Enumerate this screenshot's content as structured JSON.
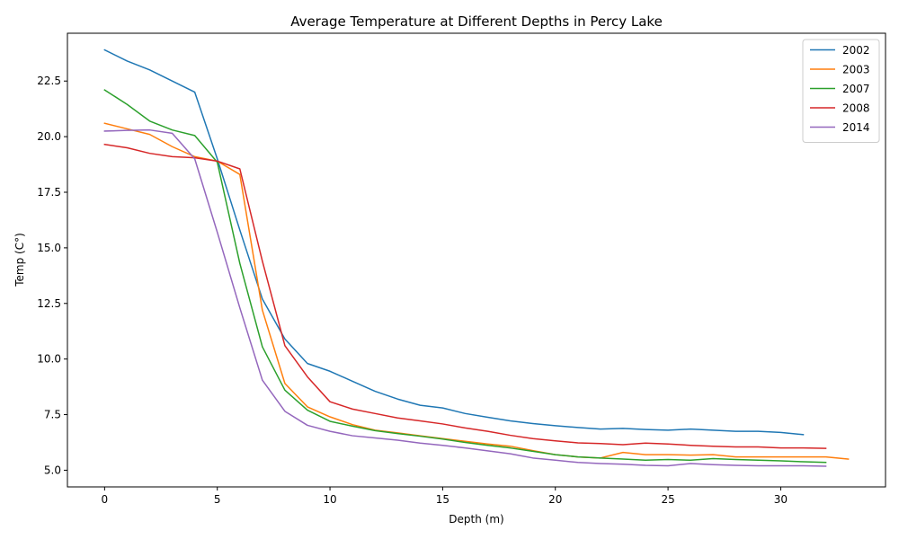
{
  "chart_data": {
    "type": "line",
    "title": "Average Temperature at Different Depths in Percy Lake",
    "xlabel": "Depth (m)",
    "ylabel": "Temp (C°)",
    "xlim": [
      -1.65,
      34.65
    ],
    "ylim": [
      4.25,
      24.65
    ],
    "xticks": [
      0,
      5,
      10,
      15,
      20,
      25,
      30
    ],
    "xtick_labels": [
      "0",
      "5",
      "10",
      "15",
      "20",
      "25",
      "30"
    ],
    "yticks": [
      5.0,
      7.5,
      10.0,
      12.5,
      15.0,
      17.5,
      20.0,
      22.5
    ],
    "ytick_labels": [
      "5.0",
      "7.5",
      "10.0",
      "12.5",
      "15.0",
      "17.5",
      "20.0",
      "22.5"
    ],
    "grid": false,
    "legend_position": "top-right",
    "series": [
      {
        "name": "2002",
        "color": "#1f77b4",
        "x": [
          0,
          1,
          2,
          3,
          4,
          5,
          6,
          7,
          8,
          9,
          10,
          11,
          12,
          13,
          14,
          15,
          16,
          17,
          18,
          19,
          20,
          21,
          22,
          23,
          24,
          25,
          26,
          27,
          28,
          29,
          30,
          31
        ],
        "y": [
          23.9,
          23.4,
          23.0,
          22.5,
          22.0,
          19.0,
          15.8,
          12.7,
          10.9,
          9.8,
          9.45,
          9.0,
          8.55,
          8.2,
          7.92,
          7.8,
          7.55,
          7.38,
          7.22,
          7.1,
          7.0,
          6.92,
          6.85,
          6.88,
          6.83,
          6.8,
          6.85,
          6.8,
          6.75,
          6.75,
          6.7,
          6.6
        ]
      },
      {
        "name": "2003",
        "color": "#ff7f0e",
        "x": [
          0,
          1,
          2,
          3,
          4,
          5,
          6,
          7,
          8,
          9,
          10,
          11,
          12,
          13,
          14,
          15,
          16,
          17,
          18,
          19,
          20,
          21,
          22,
          23,
          24,
          25,
          26,
          27,
          28,
          29,
          30,
          31,
          32,
          33
        ],
        "y": [
          20.6,
          20.35,
          20.1,
          19.55,
          19.1,
          18.9,
          18.3,
          12.2,
          8.9,
          7.85,
          7.4,
          7.05,
          6.8,
          6.68,
          6.55,
          6.42,
          6.3,
          6.18,
          6.08,
          5.88,
          5.7,
          5.6,
          5.55,
          5.8,
          5.7,
          5.7,
          5.68,
          5.7,
          5.6,
          5.6,
          5.6,
          5.6,
          5.6,
          5.5
        ]
      },
      {
        "name": "2007",
        "color": "#2ca02c",
        "x": [
          0,
          1,
          2,
          3,
          4,
          5,
          6,
          7,
          8,
          9,
          10,
          11,
          12,
          13,
          14,
          15,
          16,
          17,
          18,
          19,
          20,
          21,
          22,
          23,
          24,
          25,
          26,
          27,
          28,
          29,
          30,
          31,
          32
        ],
        "y": [
          22.1,
          21.45,
          20.7,
          20.3,
          20.05,
          18.85,
          14.3,
          10.55,
          8.6,
          7.7,
          7.2,
          6.98,
          6.78,
          6.65,
          6.53,
          6.4,
          6.25,
          6.12,
          6.0,
          5.85,
          5.7,
          5.6,
          5.55,
          5.5,
          5.45,
          5.48,
          5.45,
          5.52,
          5.48,
          5.45,
          5.42,
          5.38,
          5.35
        ]
      },
      {
        "name": "2008",
        "color": "#d62728",
        "x": [
          0,
          1,
          2,
          3,
          4,
          5,
          6,
          7,
          8,
          9,
          10,
          11,
          12,
          13,
          14,
          15,
          16,
          17,
          18,
          19,
          20,
          21,
          22,
          23,
          24,
          25,
          26,
          27,
          28,
          29,
          30,
          31,
          32
        ],
        "y": [
          19.65,
          19.5,
          19.25,
          19.1,
          19.05,
          18.9,
          18.55,
          14.4,
          10.6,
          9.2,
          8.08,
          7.75,
          7.55,
          7.35,
          7.22,
          7.08,
          6.9,
          6.75,
          6.57,
          6.42,
          6.32,
          6.23,
          6.2,
          6.15,
          6.22,
          6.18,
          6.12,
          6.08,
          6.05,
          6.05,
          6.0,
          6.0,
          5.98
        ]
      },
      {
        "name": "2014",
        "color": "#9467bd",
        "x": [
          0,
          1,
          2,
          3,
          4,
          5,
          6,
          7,
          8,
          9,
          10,
          11,
          12,
          13,
          14,
          15,
          16,
          17,
          18,
          19,
          20,
          21,
          22,
          23,
          24,
          25,
          26,
          27,
          28,
          29,
          30,
          31,
          32
        ],
        "y": [
          20.25,
          20.28,
          20.3,
          20.15,
          19.0,
          15.7,
          12.3,
          9.05,
          7.65,
          7.02,
          6.75,
          6.55,
          6.45,
          6.35,
          6.22,
          6.12,
          6.0,
          5.87,
          5.74,
          5.55,
          5.45,
          5.35,
          5.3,
          5.27,
          5.22,
          5.2,
          5.3,
          5.25,
          5.22,
          5.2,
          5.2,
          5.2,
          5.18
        ]
      }
    ]
  }
}
